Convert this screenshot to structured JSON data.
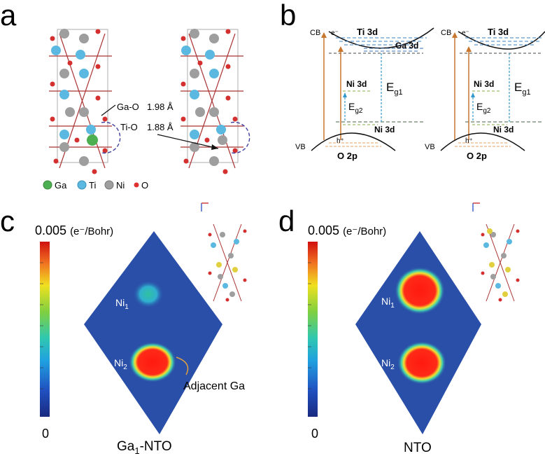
{
  "panels": {
    "a": {
      "label": "a",
      "annotations": {
        "ga_o": "Ga-O",
        "ga_o_val": "1.98 Å",
        "ti_o": "Ti-O",
        "ti_o_val": "1.88 Å"
      },
      "legend": [
        {
          "label": "Ga",
          "color": "#4caf50"
        },
        {
          "label": "Ti",
          "color": "#5bb8e0"
        },
        {
          "label": "Ni",
          "color": "#9e9e9e"
        },
        {
          "label": "O",
          "color": "#e03030"
        }
      ]
    },
    "b": {
      "label": "b",
      "cb": "CB",
      "vb": "VB",
      "electron": "e⁻",
      "hole": "h⁺",
      "ti3d": "Ti 3d",
      "ga3d": "Ga 3d",
      "ni3d": "Ni 3d",
      "o2p": "O 2p",
      "eg1_main": "E",
      "eg1_sub": "g1",
      "eg2_main": "E",
      "eg2_sub": "g2"
    },
    "c": {
      "label": "c",
      "scale_max": "0.005",
      "scale_unit": "(e⁻/Bohr)",
      "scale_min": "0",
      "ni1_main": "Ni",
      "ni1_sub": "1",
      "ni2_main": "Ni",
      "ni2_sub": "2",
      "adjacent": "Adjacent Ga",
      "caption_main": "Ga",
      "caption_sub": "1",
      "caption_rest": "-NTO"
    },
    "d": {
      "label": "d",
      "scale_max": "0.005",
      "scale_unit": "(e⁻/Bohr)",
      "scale_min": "0",
      "ni1_main": "Ni",
      "ni1_sub": "1",
      "ni2_main": "Ni",
      "ni2_sub": "2",
      "caption": "NTO"
    }
  },
  "colors": {
    "cb_line": "#8b8b8b",
    "ga_level": "#2266aa",
    "ni_level": "#446644",
    "arrow_orange": "#c8762e",
    "arrow_blue": "#3399cc",
    "map_bg": "#2a4fa8",
    "hot": "#ff2a1a"
  }
}
